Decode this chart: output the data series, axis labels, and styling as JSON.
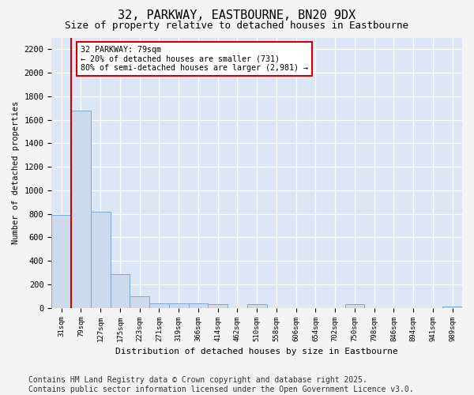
{
  "title": "32, PARKWAY, EASTBOURNE, BN20 9DX",
  "subtitle": "Size of property relative to detached houses in Eastbourne",
  "xlabel": "Distribution of detached houses by size in Eastbourne",
  "ylabel": "Number of detached properties",
  "categories": [
    "31sqm",
    "79sqm",
    "127sqm",
    "175sqm",
    "223sqm",
    "271sqm",
    "319sqm",
    "366sqm",
    "414sqm",
    "462sqm",
    "510sqm",
    "558sqm",
    "606sqm",
    "654sqm",
    "702sqm",
    "750sqm",
    "798sqm",
    "846sqm",
    "894sqm",
    "941sqm",
    "989sqm"
  ],
  "values": [
    790,
    1680,
    820,
    290,
    100,
    40,
    40,
    40,
    30,
    0,
    30,
    0,
    0,
    0,
    0,
    30,
    0,
    0,
    0,
    0,
    10
  ],
  "bar_color": "#cdd9ec",
  "bar_edge_color": "#7da8cc",
  "vline_color": "#cc0000",
  "annotation_text": "32 PARKWAY: 79sqm\n← 20% of detached houses are smaller (731)\n80% of semi-detached houses are larger (2,981) →",
  "annotation_box_color": "#ffffff",
  "annotation_box_edge_color": "#cc0000",
  "ylim": [
    0,
    2300
  ],
  "yticks": [
    0,
    200,
    400,
    600,
    800,
    1000,
    1200,
    1400,
    1600,
    1800,
    2000,
    2200
  ],
  "background_color": "#dde6f5",
  "fig_background": "#f4f4f4",
  "footer_line1": "Contains HM Land Registry data © Crown copyright and database right 2025.",
  "footer_line2": "Contains public sector information licensed under the Open Government Licence v3.0.",
  "title_fontsize": 11,
  "subtitle_fontsize": 9,
  "footer_fontsize": 7
}
